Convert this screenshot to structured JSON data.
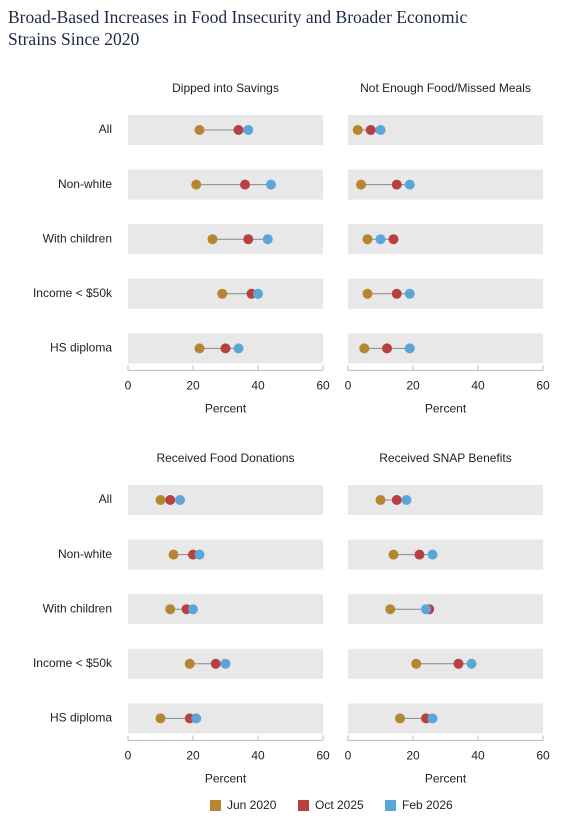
{
  "chart_data": {
    "type": "dot",
    "title": "Broad-Based Increases in Food Insecurity and Broader Economic Strains Since 2020",
    "categories": [
      "All",
      "Non-white",
      "With children",
      "Income < $50k",
      "HS diploma"
    ],
    "series": [
      {
        "name": "Jun 2020",
        "color": "#b5862f"
      },
      {
        "name": "Oct 2025",
        "color": "#b84040"
      },
      {
        "name": "Feb 2026",
        "color": "#5aa6d9"
      }
    ],
    "xlabel": "Percent",
    "xlim": [
      0,
      60
    ],
    "xticks": [
      0,
      20,
      40,
      60
    ],
    "panels": [
      {
        "title": "Dipped into Savings",
        "series": [
          {
            "values": [
              22,
              21,
              26,
              29,
              22
            ]
          },
          {
            "values": [
              34,
              36,
              37,
              38,
              30
            ]
          },
          {
            "values": [
              37,
              44,
              43,
              40,
              34
            ]
          }
        ]
      },
      {
        "title": "Not Enough Food/Missed Meals",
        "series": [
          {
            "values": [
              3,
              4,
              6,
              6,
              5
            ]
          },
          {
            "values": [
              7,
              15,
              14,
              15,
              12
            ]
          },
          {
            "values": [
              10,
              19,
              10,
              19,
              19
            ]
          }
        ]
      },
      {
        "title": "Received Food Donations",
        "series": [
          {
            "values": [
              10,
              14,
              13,
              19,
              10
            ]
          },
          {
            "values": [
              13,
              20,
              18,
              27,
              19
            ]
          },
          {
            "values": [
              16,
              22,
              20,
              30,
              21
            ]
          }
        ]
      },
      {
        "title": "Received SNAP Benefits",
        "series": [
          {
            "values": [
              10,
              14,
              13,
              21,
              16
            ]
          },
          {
            "values": [
              15,
              22,
              25,
              34,
              24
            ]
          },
          {
            "values": [
              18,
              26,
              24,
              38,
              26
            ]
          }
        ]
      }
    ]
  }
}
